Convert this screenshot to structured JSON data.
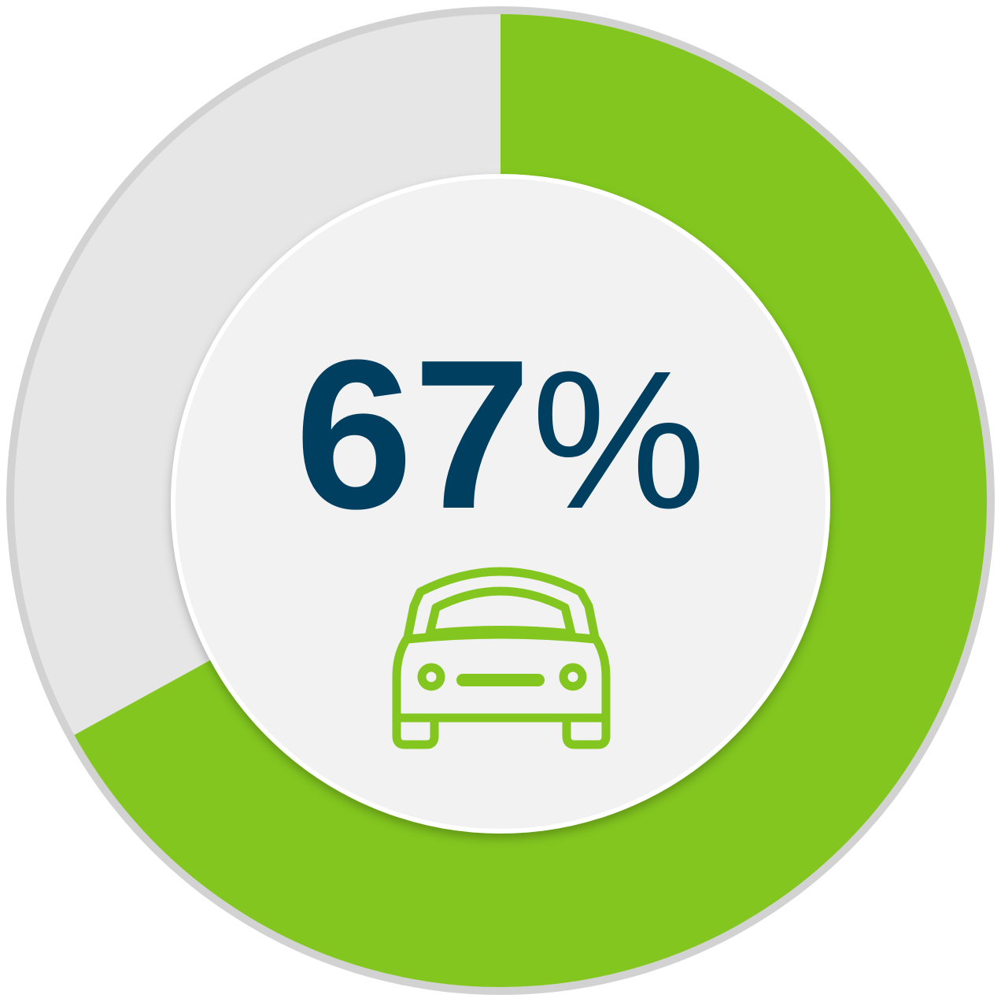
{
  "chart_data": {
    "type": "donut",
    "values": [
      67
    ],
    "value_labels": [
      "67%"
    ],
    "color": "#82c61f",
    "track_color": "#e6e6e6",
    "ylim": [
      0,
      100
    ]
  }
}
